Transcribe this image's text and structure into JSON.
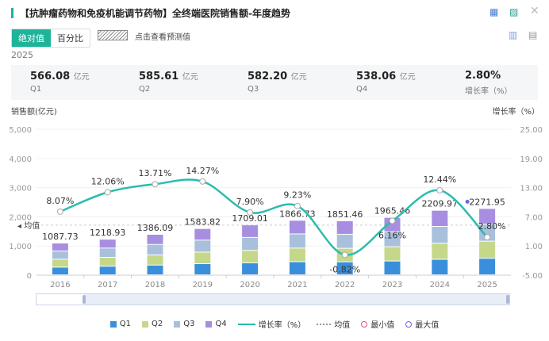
{
  "header": {
    "title": "【抗肿瘤药物和免疫机能调节药物】全终端医院销售额-年度趋势"
  },
  "tabs": [
    "绝对值",
    "百分比"
  ],
  "predict_label": "点击查看预测值",
  "year": "2025",
  "stats": [
    {
      "value": "566.08",
      "unit": "亿元",
      "label": "Q1"
    },
    {
      "value": "585.61",
      "unit": "亿元",
      "label": "Q2"
    },
    {
      "value": "582.20",
      "unit": "亿元",
      "label": "Q3"
    },
    {
      "value": "538.06",
      "unit": "亿元",
      "label": "Q4"
    },
    {
      "value": "2.80%",
      "unit": "",
      "label": "增长率（%）"
    }
  ],
  "colors": {
    "Q1": "#3a8fdc",
    "Q2": "#c5d88a",
    "Q3": "#a8c0dc",
    "Q4": "#a88ee0",
    "line": "#2bbcae"
  },
  "chart_data": {
    "type": "bar",
    "categories": [
      "2016",
      "2017",
      "2018",
      "2019",
      "2020",
      "2021",
      "2022",
      "2023",
      "2024",
      "2025"
    ],
    "ylabel": "销售额(亿元)",
    "y2label": "增长率（%）",
    "ylim": [
      0,
      5000
    ],
    "yticks": [
      "0",
      "1,000",
      "2,000",
      "3,000",
      "4,000",
      "5,000"
    ],
    "y2lim": [
      -5,
      25
    ],
    "y2ticks": [
      "-5.00",
      "1.00",
      "7.00",
      "13.00",
      "19.00",
      "25.00"
    ],
    "totals": [
      1087.73,
      1218.93,
      1386.09,
      1583.82,
      1709.01,
      1866.73,
      1851.46,
      1965.46,
      2209.97,
      2271.95
    ],
    "total_labels": [
      "1087.73",
      "1218.93",
      "1386.09",
      "1583.82",
      "1709.01",
      "1866.73",
      "1851.46",
      "1965.46",
      "2209.97",
      "2271.95"
    ],
    "series": [
      {
        "name": "Q1",
        "values": [
          261,
          293,
          333,
          380,
          410,
          448,
          444,
          472,
          530,
          566.08
        ]
      },
      {
        "name": "Q2",
        "values": [
          272,
          305,
          347,
          396,
          427,
          467,
          463,
          491,
          552,
          585.61
        ]
      },
      {
        "name": "Q3",
        "values": [
          283,
          317,
          360,
          412,
          444,
          485,
          481,
          511,
          575,
          582.2
        ]
      },
      {
        "name": "Q4",
        "values": [
          272,
          304,
          346,
          396,
          428,
          467,
          463,
          491,
          553,
          538.06
        ]
      }
    ],
    "growth": [
      8.07,
      12.06,
      13.71,
      14.27,
      7.9,
      9.23,
      -0.82,
      6.16,
      12.44,
      2.8
    ],
    "growth_labels": [
      "8.07%",
      "12.06%",
      "13.71%",
      "14.27%",
      "7.90%",
      "9.23%",
      "-0.82%",
      "6.16%",
      "12.44%",
      "2.80%"
    ],
    "average": 1715,
    "average_label": "均值",
    "legend": [
      "Q1",
      "Q2",
      "Q3",
      "Q4",
      "增长率（%）",
      "均值",
      "最小值",
      "最大值"
    ]
  }
}
